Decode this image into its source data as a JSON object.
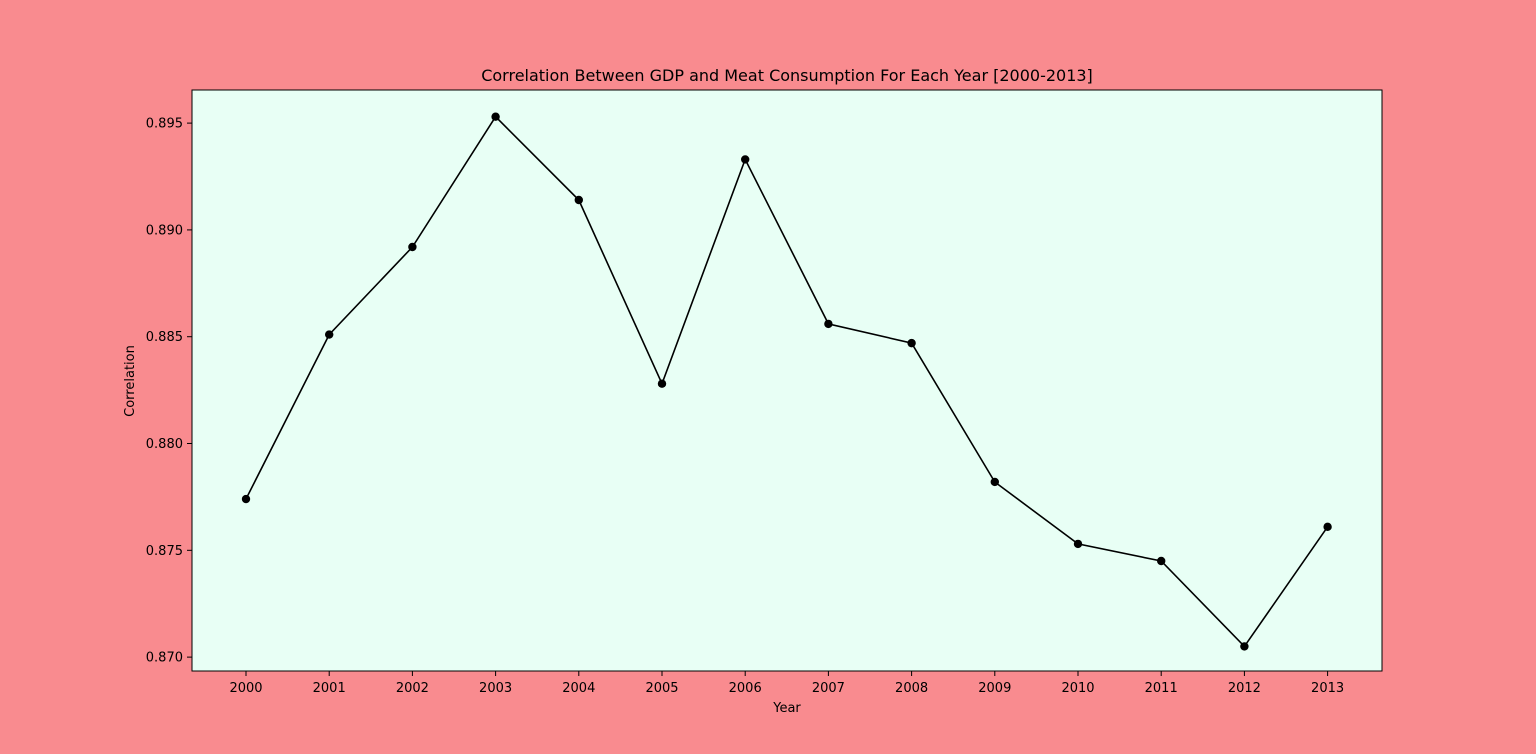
{
  "chart_data": {
    "type": "line",
    "title": "Correlation Between GDP and Meat Consumption For Each Year [2000-2013]",
    "xlabel": "Year",
    "ylabel": "Correlation",
    "x": [
      "2000",
      "2001",
      "2002",
      "2003",
      "2004",
      "2005",
      "2006",
      "2007",
      "2008",
      "2009",
      "2010",
      "2011",
      "2012",
      "2013"
    ],
    "series": [
      {
        "values": [
          0.8774,
          0.8851,
          0.8892,
          0.8953,
          0.8914,
          0.8828,
          0.8933,
          0.8856,
          0.8847,
          0.8782,
          0.8753,
          0.8745,
          0.8705,
          0.8761
        ],
        "color": "#000000",
        "marker": "circle"
      }
    ],
    "ylim": [
      0.86935,
      0.89655
    ],
    "yticks": [
      "0.870",
      "0.875",
      "0.880",
      "0.885",
      "0.890",
      "0.895"
    ],
    "grid": false,
    "legend": false,
    "colors": {
      "figure_background": "#f98b8f",
      "plot_background": "#e8fff5",
      "line": "#000000"
    }
  }
}
